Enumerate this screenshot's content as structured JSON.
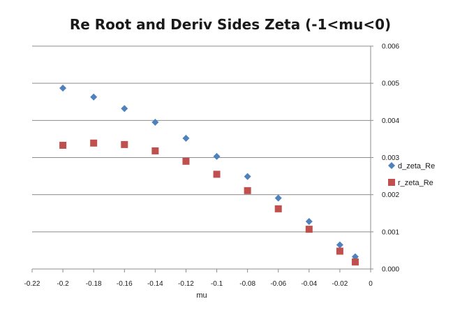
{
  "chart_data": {
    "type": "scatter",
    "title": "Re Root and Deriv Sides Zeta (-1<mu<0)",
    "xlabel": "mu",
    "ylabel": "",
    "xlim": [
      -0.22,
      0
    ],
    "ylim": [
      0,
      0.006
    ],
    "x_ticks": [
      "-0.22",
      "-0.2",
      "-0.18",
      "-0.16",
      "-0.14",
      "-0.12",
      "-0.1",
      "-0.08",
      "-0.06",
      "-0.04",
      "-0.02",
      "0"
    ],
    "y_ticks": [
      "0.000",
      "0.001",
      "0.002",
      "0.003",
      "0.004",
      "0.005",
      "0.006"
    ],
    "grid": "horizontal",
    "legend_position": "right",
    "series": [
      {
        "name": "d_zeta_Re",
        "marker": "diamond",
        "color": "#4f81bd",
        "x": [
          -0.2,
          -0.18,
          -0.16,
          -0.14,
          -0.12,
          -0.1,
          -0.08,
          -0.06,
          -0.04,
          -0.02,
          -0.01
        ],
        "y": [
          0.00487,
          0.00463,
          0.00432,
          0.00395,
          0.00352,
          0.00303,
          0.00249,
          0.00191,
          0.00128,
          0.00065,
          0.00033
        ]
      },
      {
        "name": "r_zeta_Re",
        "marker": "square",
        "color": "#c0504d",
        "x": [
          -0.2,
          -0.18,
          -0.16,
          -0.14,
          -0.12,
          -0.1,
          -0.08,
          -0.06,
          -0.04,
          -0.02,
          -0.01
        ],
        "y": [
          0.00333,
          0.00339,
          0.00335,
          0.00318,
          0.0029,
          0.00255,
          0.00211,
          0.00162,
          0.00107,
          0.00048,
          0.00019
        ]
      }
    ]
  }
}
